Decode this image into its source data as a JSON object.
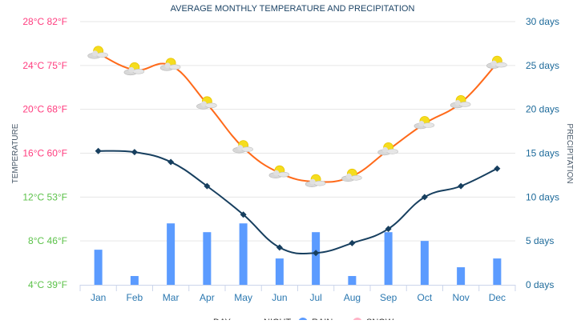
{
  "chart_data": {
    "type": "line",
    "title": "AVERAGE MONTHLY TEMPERATURE AND PRECIPITATION",
    "ylabel_left": "TEMPERATURE",
    "ylabel_right": "PRECIPITATION",
    "categories": [
      "Jan",
      "Feb",
      "Mar",
      "Apr",
      "May",
      "Jun",
      "Jul",
      "Aug",
      "Sep",
      "Oct",
      "Nov",
      "Dec"
    ],
    "left_axis": {
      "ylim": [
        4,
        28
      ],
      "ticks": [
        {
          "c": 28,
          "label": "28°C 82°F",
          "color": "#ff3d7f"
        },
        {
          "c": 24,
          "label": "24°C 75°F",
          "color": "#ff3d7f"
        },
        {
          "c": 20,
          "label": "20°C 68°F",
          "color": "#ff3d7f"
        },
        {
          "c": 16,
          "label": "16°C 60°F",
          "color": "#ff3d7f"
        },
        {
          "c": 12,
          "label": "12°C 53°F",
          "color": "#5cc24a"
        },
        {
          "c": 8,
          "label": "8°C 46°F",
          "color": "#5cc24a"
        },
        {
          "c": 4,
          "label": "4°C 39°F",
          "color": "#5cc24a"
        }
      ]
    },
    "right_axis": {
      "ylim": [
        0,
        30
      ],
      "ticks": [
        {
          "v": 30,
          "label": "30 days"
        },
        {
          "v": 25,
          "label": "25 days"
        },
        {
          "v": 20,
          "label": "20 days"
        },
        {
          "v": 15,
          "label": "15 days"
        },
        {
          "v": 10,
          "label": "10 days"
        },
        {
          "v": 5,
          "label": "5 days"
        },
        {
          "v": 0,
          "label": "0 days"
        }
      ]
    },
    "series": [
      {
        "name": "DAY",
        "type": "line",
        "axis": "left",
        "color": "#ff6a1a",
        "icon": "sun-cloud-icon",
        "values": [
          25.1,
          23.6,
          24.0,
          20.5,
          16.5,
          14.2,
          13.4,
          13.9,
          16.3,
          18.7,
          20.6,
          24.2
        ]
      },
      {
        "name": "NIGHT",
        "type": "line",
        "axis": "left",
        "color": "#173f5f",
        "values": [
          16.2,
          16.1,
          15.2,
          13.0,
          10.4,
          7.4,
          6.9,
          7.8,
          9.1,
          12.0,
          13.0,
          14.6
        ]
      },
      {
        "name": "RAIN",
        "type": "bar",
        "axis": "right",
        "color": "#5b9bff",
        "values": [
          4,
          1,
          7,
          6,
          7,
          3,
          6,
          1,
          6,
          5,
          2,
          3
        ]
      },
      {
        "name": "SNOW",
        "type": "bar",
        "axis": "right",
        "color": "#ffb3c6",
        "values": [
          0,
          0,
          0,
          0,
          0,
          0,
          0,
          0,
          0,
          0,
          0,
          0
        ]
      }
    ],
    "grid": true,
    "legend": "bottom",
    "colors": {
      "title": "#1d4466",
      "right_axis": "#1d6a9a",
      "month_labels": "#2b78b0"
    }
  }
}
